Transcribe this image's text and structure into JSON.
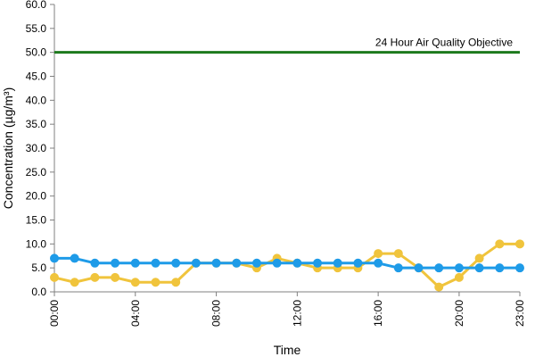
{
  "chart_data": {
    "type": "line",
    "xlabel": "Time",
    "ylabel": "Concentration (µg/m³)",
    "x": [
      "00:00",
      "01:00",
      "02:00",
      "03:00",
      "04:00",
      "05:00",
      "06:00",
      "07:00",
      "08:00",
      "09:00",
      "10:00",
      "11:00",
      "12:00",
      "13:00",
      "14:00",
      "15:00",
      "16:00",
      "17:00",
      "18:00",
      "19:00",
      "20:00",
      "21:00",
      "22:00",
      "23:00"
    ],
    "x_tick_labels": [
      "00:00",
      "04:00",
      "08:00",
      "12:00",
      "16:00",
      "20:00",
      "23:00"
    ],
    "y_tick_labels": [
      "0.0",
      "5.0",
      "10.0",
      "15.0",
      "20.0",
      "25.0",
      "30.0",
      "35.0",
      "40.0",
      "45.0",
      "50.0",
      "55.0",
      "60.0"
    ],
    "ylim": [
      0,
      60
    ],
    "grid": false,
    "series": [
      {
        "color": "#f0c43c",
        "values": [
          3,
          2,
          3,
          3,
          2,
          2,
          2,
          6,
          6,
          6,
          5,
          7,
          6,
          5,
          5,
          5,
          8,
          8,
          5,
          1,
          3,
          7,
          10,
          10
        ]
      },
      {
        "color": "#1e9be8",
        "values": [
          7,
          7,
          6,
          6,
          6,
          6,
          6,
          6,
          6,
          6,
          6,
          6,
          6,
          6,
          6,
          6,
          6,
          5,
          5,
          5,
          5,
          5,
          5,
          5
        ]
      }
    ],
    "reference_line": {
      "label": "24 Hour Air Quality Objective",
      "value": 50,
      "color": "#1d7a1d"
    }
  }
}
